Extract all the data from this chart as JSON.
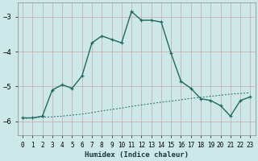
{
  "xlabel": "Humidex (Indice chaleur)",
  "background_color": "#cce8e8",
  "grid_color": "#b8d4d4",
  "line_color": "#1e6b5e",
  "xlim": [
    -0.5,
    23.5
  ],
  "ylim": [
    -6.4,
    -2.6
  ],
  "yticks": [
    -6,
    -5,
    -4,
    -3
  ],
  "xticks": [
    0,
    1,
    2,
    3,
    4,
    5,
    6,
    7,
    8,
    9,
    10,
    11,
    12,
    13,
    14,
    15,
    16,
    17,
    18,
    19,
    20,
    21,
    22,
    23
  ],
  "curve1_x": [
    0,
    1,
    2,
    3,
    4,
    5,
    6,
    7,
    8,
    9,
    10,
    11,
    12,
    13,
    14,
    15,
    16,
    17,
    18,
    19,
    20,
    21,
    22,
    23
  ],
  "curve1_y": [
    -5.9,
    -5.9,
    -5.85,
    -5.1,
    -4.95,
    -5.05,
    -4.7,
    -3.75,
    -3.55,
    -3.65,
    -3.75,
    -2.85,
    -3.1,
    -3.1,
    -3.15,
    -4.05,
    -4.85,
    -5.05,
    -5.35,
    -5.4,
    -5.55,
    -5.85,
    -5.4,
    -5.3
  ],
  "curve2_x": [
    0,
    1,
    2,
    3,
    4,
    5,
    6,
    7,
    8,
    9,
    10,
    11,
    12,
    13,
    14,
    15,
    16,
    17,
    18,
    19,
    20,
    21,
    22,
    23
  ],
  "curve2_y": [
    -5.92,
    -5.9,
    -5.88,
    -5.87,
    -5.85,
    -5.82,
    -5.79,
    -5.75,
    -5.7,
    -5.66,
    -5.62,
    -5.57,
    -5.53,
    -5.49,
    -5.45,
    -5.42,
    -5.38,
    -5.34,
    -5.31,
    -5.28,
    -5.25,
    -5.22,
    -5.2,
    -5.18
  ]
}
